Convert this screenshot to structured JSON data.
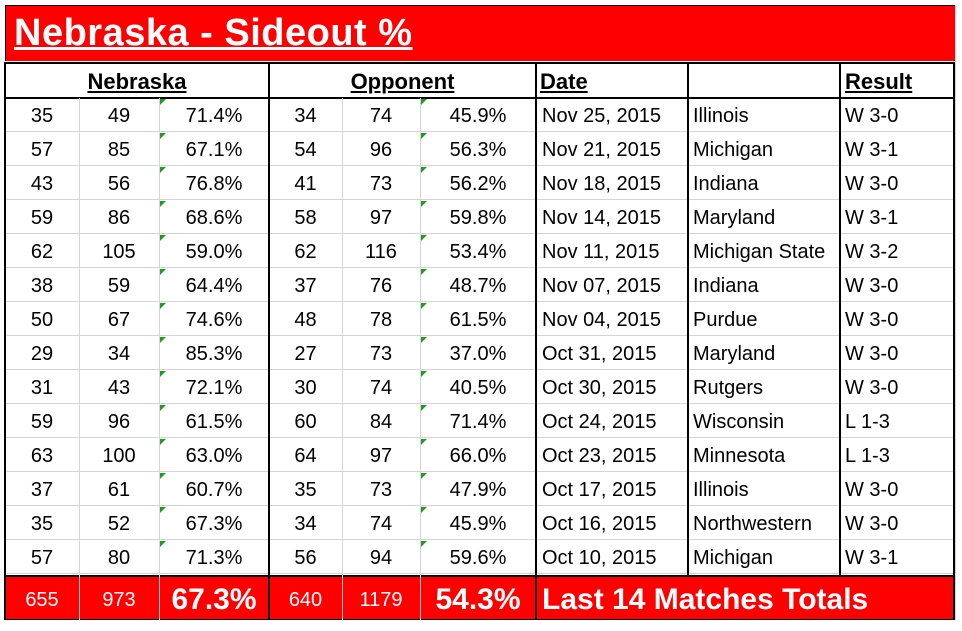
{
  "title": "Nebraska - Sideout %",
  "headers": {
    "nebraska": "Nebraska",
    "opponent": "Opponent",
    "date": "Date",
    "team": "",
    "result": "Result"
  },
  "rows": [
    {
      "n_so": "35",
      "n_att": "49",
      "n_pct": "71.4%",
      "o_so": "34",
      "o_att": "74",
      "o_pct": "45.9%",
      "date": "Nov 25, 2015",
      "team": "Illinois",
      "result": "W 3-0"
    },
    {
      "n_so": "57",
      "n_att": "85",
      "n_pct": "67.1%",
      "o_so": "54",
      "o_att": "96",
      "o_pct": "56.3%",
      "date": "Nov 21, 2015",
      "team": "Michigan",
      "result": "W 3-1"
    },
    {
      "n_so": "43",
      "n_att": "56",
      "n_pct": "76.8%",
      "o_so": "41",
      "o_att": "73",
      "o_pct": "56.2%",
      "date": "Nov 18, 2015",
      "team": "Indiana",
      "result": "W 3-0"
    },
    {
      "n_so": "59",
      "n_att": "86",
      "n_pct": "68.6%",
      "o_so": "58",
      "o_att": "97",
      "o_pct": "59.8%",
      "date": "Nov 14, 2015",
      "team": "Maryland",
      "result": "W 3-1"
    },
    {
      "n_so": "62",
      "n_att": "105",
      "n_pct": "59.0%",
      "o_so": "62",
      "o_att": "116",
      "o_pct": "53.4%",
      "date": "Nov 11, 2015",
      "team": "Michigan State",
      "result": "W 3-2"
    },
    {
      "n_so": "38",
      "n_att": "59",
      "n_pct": "64.4%",
      "o_so": "37",
      "o_att": "76",
      "o_pct": "48.7%",
      "date": "Nov 07, 2015",
      "team": "Indiana",
      "result": "W 3-0"
    },
    {
      "n_so": "50",
      "n_att": "67",
      "n_pct": "74.6%",
      "o_so": "48",
      "o_att": "78",
      "o_pct": "61.5%",
      "date": "Nov 04, 2015",
      "team": "Purdue",
      "result": "W 3-0"
    },
    {
      "n_so": "29",
      "n_att": "34",
      "n_pct": "85.3%",
      "o_so": "27",
      "o_att": "73",
      "o_pct": "37.0%",
      "date": "Oct 31, 2015",
      "team": "Maryland",
      "result": "W 3-0"
    },
    {
      "n_so": "31",
      "n_att": "43",
      "n_pct": "72.1%",
      "o_so": "30",
      "o_att": "74",
      "o_pct": "40.5%",
      "date": "Oct 30, 2015",
      "team": "Rutgers",
      "result": "W 3-0"
    },
    {
      "n_so": "59",
      "n_att": "96",
      "n_pct": "61.5%",
      "o_so": "60",
      "o_att": "84",
      "o_pct": "71.4%",
      "date": "Oct 24, 2015",
      "team": "Wisconsin",
      "result": "L 1-3"
    },
    {
      "n_so": "63",
      "n_att": "100",
      "n_pct": "63.0%",
      "o_so": "64",
      "o_att": "97",
      "o_pct": "66.0%",
      "date": "Oct 23, 2015",
      "team": "Minnesota",
      "result": "L 1-3"
    },
    {
      "n_so": "37",
      "n_att": "61",
      "n_pct": "60.7%",
      "o_so": "35",
      "o_att": "73",
      "o_pct": "47.9%",
      "date": "Oct 17, 2015",
      "team": "Illinois",
      "result": "W 3-0"
    },
    {
      "n_so": "35",
      "n_att": "52",
      "n_pct": "67.3%",
      "o_so": "34",
      "o_att": "74",
      "o_pct": "45.9%",
      "date": "Oct 16, 2015",
      "team": "Northwestern",
      "result": "W 3-0"
    },
    {
      "n_so": "57",
      "n_att": "80",
      "n_pct": "71.3%",
      "o_so": "56",
      "o_att": "94",
      "o_pct": "59.6%",
      "date": "Oct 10, 2015",
      "team": "Michigan",
      "result": "W 3-1"
    }
  ],
  "totals": {
    "n_so": "655",
    "n_att": "973",
    "n_pct": "67.3%",
    "o_so": "640",
    "o_att": "1179",
    "o_pct": "54.3%",
    "label": "Last 14 Matches Totals"
  },
  "colors": {
    "title_bg": "#ff0000",
    "totals_bg": "#ff0000",
    "title_text": "#ffffff",
    "error_triangle": "#1e9e1e"
  }
}
